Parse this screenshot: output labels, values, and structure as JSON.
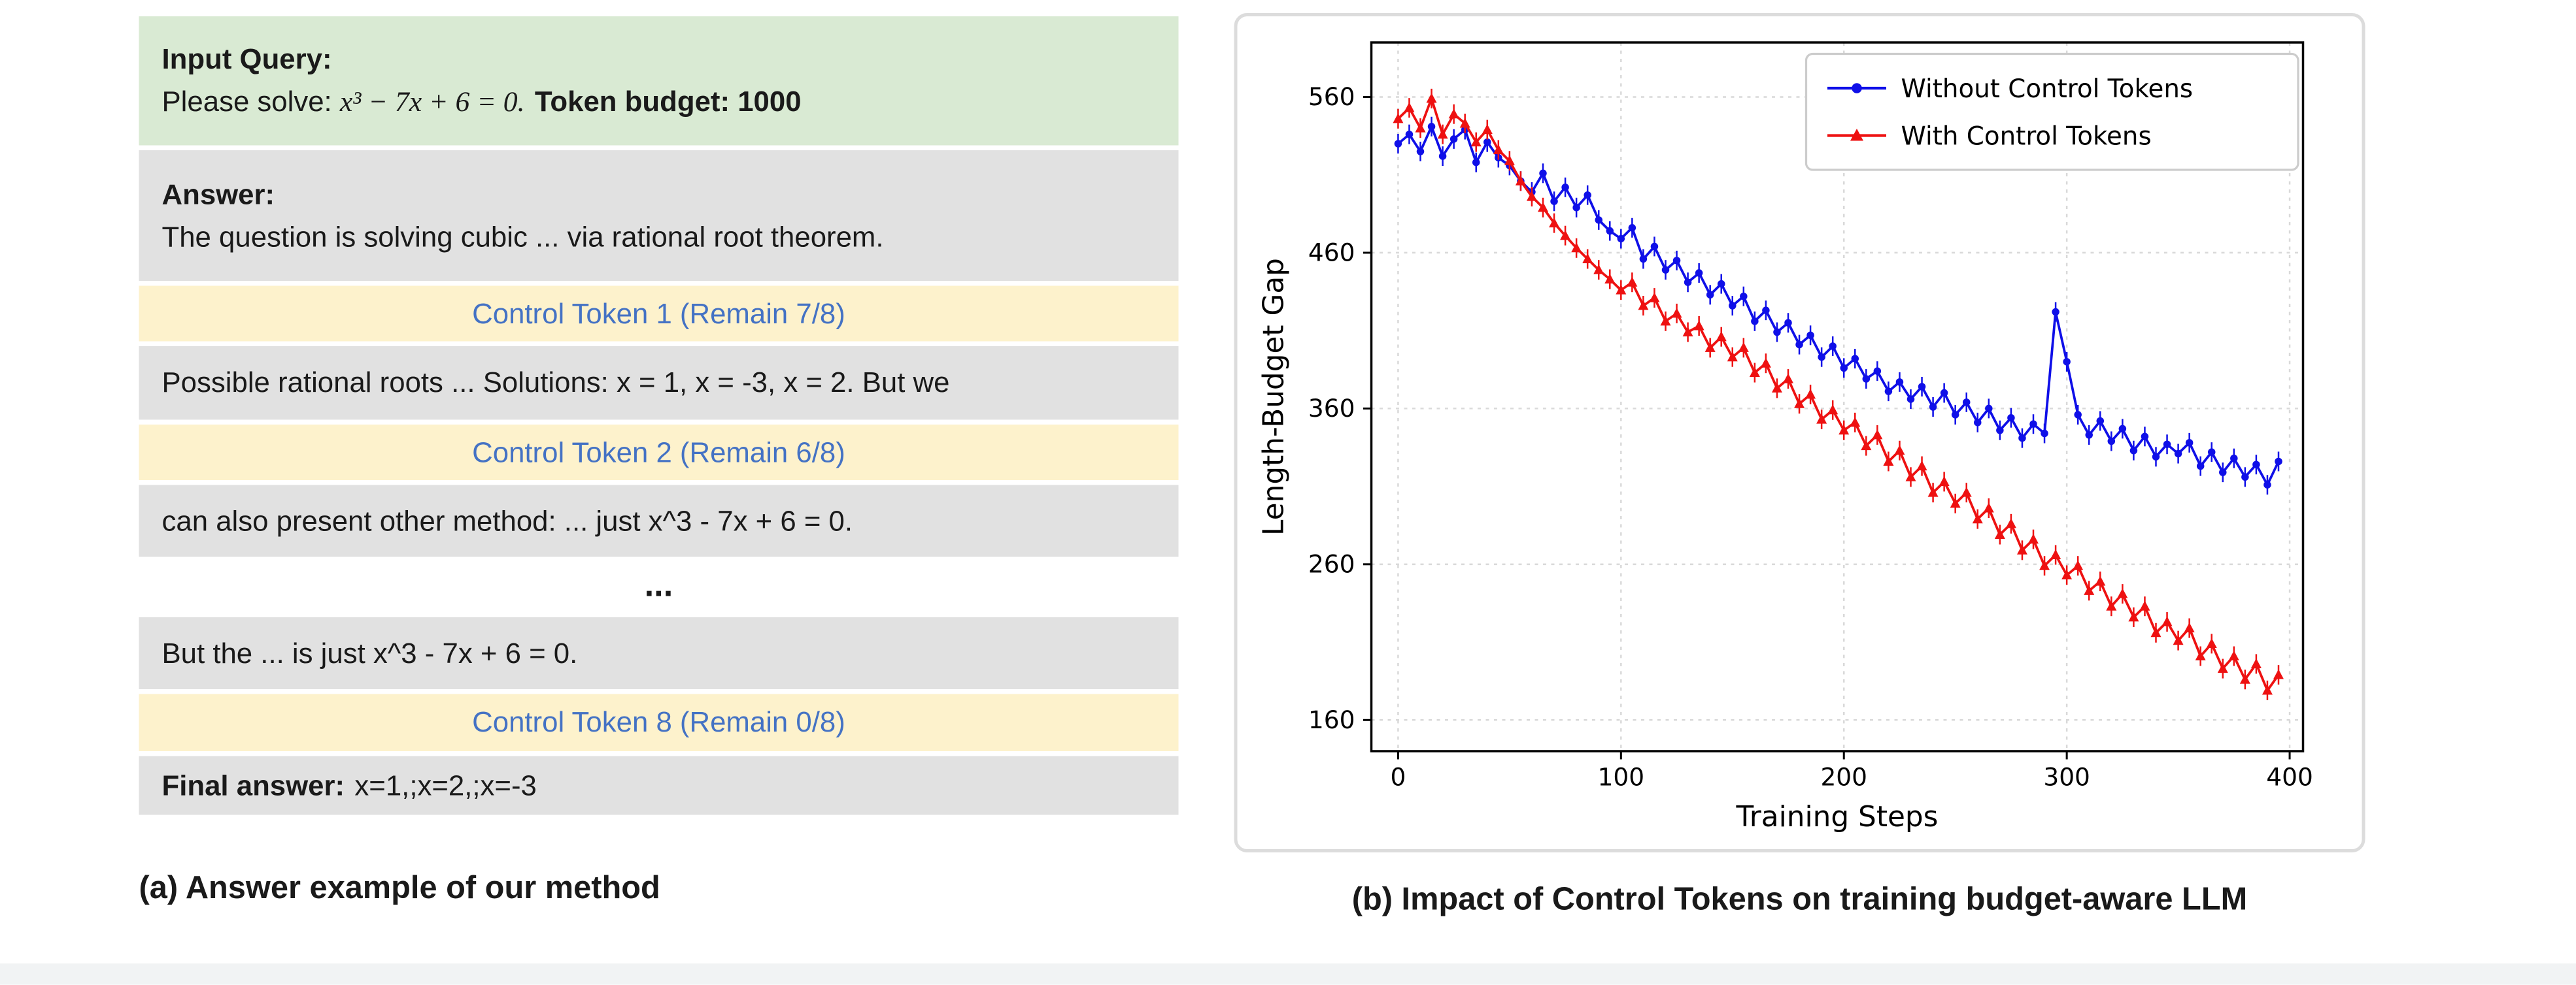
{
  "panel_a": {
    "caption": "(a) Answer example of our method",
    "colors": {
      "query_bg": "#d9ead3",
      "answer_bg": "#e1e1e1",
      "control_bg": "#fdf2cc",
      "control_text": "#4472c4"
    },
    "input_query": {
      "label": "Input Query:",
      "prefix": "Please solve: ",
      "equation": "x³ − 7x + 6 = 0.",
      "budget": "Token budget: 1000"
    },
    "answer": {
      "label": "Answer:",
      "segment1": "The question is solving cubic ... via rational root theorem.",
      "control1": "Control Token 1 (Remain 7/8)",
      "segment2": "Possible rational roots ... Solutions: x = 1, x = -3, x = 2. But we",
      "control2": "Control Token 2 (Remain 6/8)",
      "segment3": "can also present other method:  ... just x^3 - 7x + 6 = 0.",
      "ellipsis": "...",
      "segment4": "But the ... is just x^3 - 7x + 6 = 0.",
      "control8": "Control Token 8 (Remain 0/8)",
      "final_label": "Final answer:",
      "final_value": "x=1,;x=2,;x=-3"
    }
  },
  "panel_b": {
    "caption": "(b) Impact of Control Tokens on training budget-aware LLM"
  },
  "chart_data": {
    "type": "line",
    "title": "",
    "xlabel": "Training Steps",
    "ylabel": "Length-Budget Gap",
    "xlim": [
      -12,
      406
    ],
    "ylim": [
      140,
      595
    ],
    "xticks": [
      0,
      100,
      200,
      300,
      400
    ],
    "yticks": [
      160,
      260,
      360,
      460,
      560
    ],
    "grid": true,
    "legend_position": "upper right",
    "x": [
      0,
      5,
      10,
      15,
      20,
      25,
      30,
      35,
      40,
      45,
      50,
      55,
      60,
      65,
      70,
      75,
      80,
      85,
      90,
      95,
      100,
      105,
      110,
      115,
      120,
      125,
      130,
      135,
      140,
      145,
      150,
      155,
      160,
      165,
      170,
      175,
      180,
      185,
      190,
      195,
      200,
      205,
      210,
      215,
      220,
      225,
      230,
      235,
      240,
      245,
      250,
      255,
      260,
      265,
      270,
      275,
      280,
      285,
      290,
      295,
      300,
      305,
      310,
      315,
      320,
      325,
      330,
      335,
      340,
      345,
      350,
      355,
      360,
      365,
      370,
      375,
      380,
      385,
      390,
      395
    ],
    "series": [
      {
        "name": "Without Control Tokens",
        "color": "#0f0fe8",
        "marker": "circle",
        "values": [
          530,
          536,
          525,
          541,
          522,
          533,
          539,
          518,
          531,
          521,
          516,
          506,
          499,
          511,
          493,
          502,
          489,
          497,
          481,
          474,
          469,
          476,
          456,
          464,
          449,
          455,
          441,
          447,
          433,
          440,
          426,
          432,
          416,
          423,
          409,
          415,
          401,
          407,
          393,
          400,
          386,
          392,
          379,
          384,
          371,
          377,
          366,
          374,
          361,
          370,
          356,
          364,
          351,
          360,
          346,
          354,
          341,
          350,
          344,
          422,
          390,
          356,
          343,
          352,
          339,
          347,
          333,
          342,
          329,
          337,
          331,
          338,
          323,
          332,
          319,
          328,
          316,
          324,
          311,
          326
        ]
      },
      {
        "name": "With Control Tokens",
        "color": "#ee1111",
        "marker": "triangle",
        "values": [
          546,
          553,
          540,
          559,
          536,
          549,
          543,
          531,
          539,
          526,
          519,
          506,
          496,
          489,
          479,
          471,
          463,
          456,
          449,
          443,
          436,
          441,
          426,
          431,
          416,
          421,
          409,
          413,
          399,
          406,
          393,
          399,
          383,
          389,
          373,
          379,
          363,
          369,
          353,
          359,
          346,
          351,
          336,
          343,
          326,
          333,
          316,
          323,
          306,
          313,
          299,
          306,
          289,
          296,
          279,
          286,
          269,
          276,
          259,
          266,
          253,
          259,
          243,
          249,
          233,
          241,
          226,
          233,
          216,
          223,
          211,
          219,
          201,
          209,
          193,
          201,
          186,
          196,
          179,
          189
        ]
      }
    ]
  }
}
